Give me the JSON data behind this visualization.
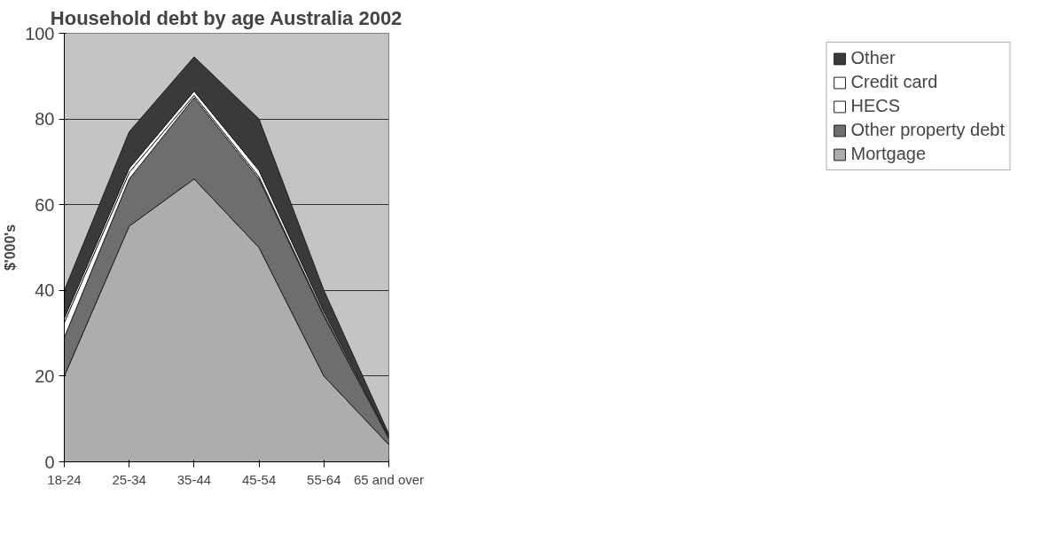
{
  "chart_data": {
    "type": "area",
    "title": "Household debt by age Australia 2002",
    "ylabel": "$'000's",
    "categories": [
      "18-24",
      "25-34",
      "35-44",
      "45-54",
      "55-64",
      "65 and over"
    ],
    "stacked": true,
    "ylim": [
      0,
      100
    ],
    "yticks": [
      0,
      20,
      40,
      60,
      80,
      100
    ],
    "grid": "y",
    "legend": "right",
    "series": [
      {
        "name": "Mortgage",
        "color": "#adadad",
        "values": [
          20,
          55,
          66,
          50,
          20,
          4
        ]
      },
      {
        "name": "Other property debt",
        "color": "#6e6e6e",
        "values": [
          9,
          11,
          19,
          16,
          14,
          1.5
        ]
      },
      {
        "name": "HECS",
        "color": "#ffffff",
        "values": [
          3.5,
          1.5,
          0.5,
          0.5,
          0.3,
          0
        ]
      },
      {
        "name": "Credit card",
        "color": "#ffffff",
        "values": [
          1,
          1,
          1,
          1.5,
          0.7,
          0.3
        ]
      },
      {
        "name": "Other",
        "color": "#3a3a3a",
        "values": [
          6.5,
          8.5,
          8,
          12,
          5,
          0.7
        ]
      }
    ]
  }
}
